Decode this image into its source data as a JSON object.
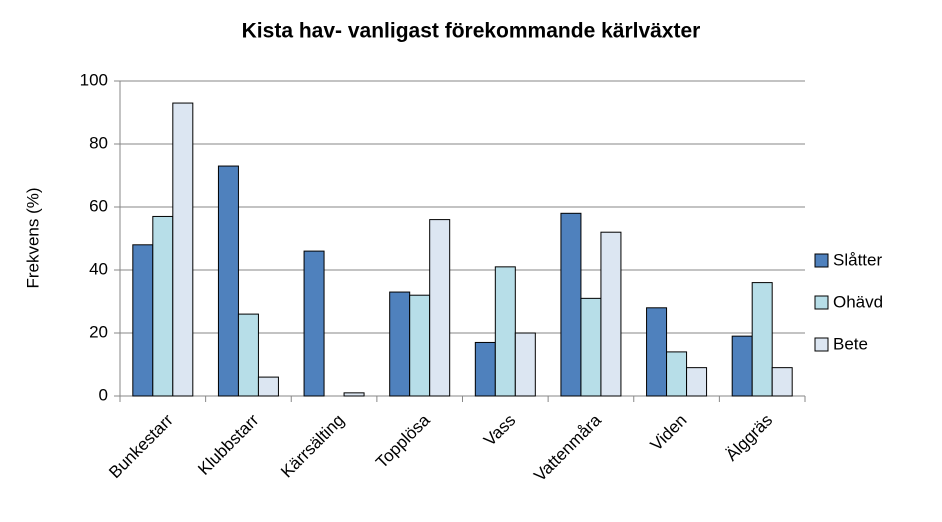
{
  "chart_data": {
    "type": "bar",
    "title": "Kista hav- vanligast förekommande kärlväxter",
    "y_label": "Frekvens (%)",
    "categories": [
      "Bunkestarr",
      "Klubbstarr",
      "Kärrsälting",
      "Topplösa",
      "Vass",
      "Vattenmåra",
      "Viden",
      "Älggräs"
    ],
    "series": [
      {
        "name": "Slåtter",
        "color": "#4f81bd",
        "values": [
          48,
          73,
          46,
          33,
          17,
          58,
          28,
          19
        ]
      },
      {
        "name": "Ohävd",
        "color": "#b7dee8",
        "values": [
          57,
          26,
          0,
          32,
          41,
          31,
          14,
          36
        ]
      },
      {
        "name": "Bete",
        "color": "#dce6f2",
        "values": [
          93,
          6,
          1,
          56,
          20,
          52,
          9,
          9
        ]
      }
    ],
    "ylim": [
      0,
      100
    ],
    "yticks": [
      0,
      20,
      40,
      60,
      80,
      100
    ],
    "grid": true,
    "legend": "right"
  }
}
